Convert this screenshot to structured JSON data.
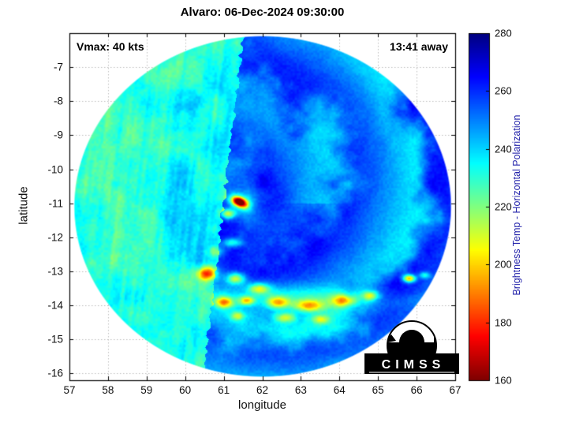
{
  "title": "Alvaro: 06-Dec-2024 09:30:00",
  "annotations": {
    "vmax": "Vmax: 40 kts",
    "timing": "13:41 away"
  },
  "axes": {
    "xlabel": "longitude",
    "ylabel": "latitude",
    "x_ticks": [
      57,
      58,
      59,
      60,
      61,
      62,
      63,
      64,
      65,
      66,
      67
    ],
    "y_ticks": [
      -7,
      -8,
      -9,
      -10,
      -11,
      -12,
      -13,
      -14,
      -15,
      -16
    ],
    "xlim": [
      57,
      67
    ],
    "ylim": [
      -16.2,
      -6.0
    ],
    "grid": "dotted"
  },
  "colorbar": {
    "label": "Brightness Temp - Horizontal Polarization",
    "ticks": [
      160,
      180,
      200,
      220,
      240,
      260,
      280
    ],
    "range": [
      160,
      280
    ],
    "colormap": "jet-reversed",
    "label_color": "#2222aa"
  },
  "logo": {
    "text": "CIMSS"
  },
  "chart_data": {
    "type": "heatmap",
    "title": "Alvaro: 06-Dec-2024 09:30:00",
    "storm_name": "Alvaro",
    "datetime": "06-Dec-2024 09:30:00",
    "vmax_kts": 40,
    "time_offset": "13:41 away",
    "xlabel": "longitude",
    "ylabel": "latitude",
    "xlim": [
      57,
      67
    ],
    "ylim": [
      -16.2,
      -6.0
    ],
    "value_range": [
      160,
      280
    ],
    "value_label": "Brightness Temp - Horizontal Polarization",
    "swath_shape": "circular",
    "swath_center": [
      62.0,
      -11.08
    ],
    "swath_radius_deg": [
      4.9,
      5.02
    ],
    "storm_center": [
      61.6,
      -11.0
    ],
    "eye_hotspot": {
      "lon": 61.4,
      "lat": -10.95,
      "min_temp": 162
    },
    "swath_seam_lon": {
      "top": 61.5,
      "bottom": 60.45
    },
    "background_temp": {
      "left_of_seam": 233,
      "right_of_seam": 251
    },
    "convective_cells": [
      [
        60.55,
        -13.05,
        55,
        9,
        6
      ],
      [
        61.3,
        -13.2,
        45,
        8,
        5
      ],
      [
        61.9,
        -13.5,
        40,
        10,
        5
      ],
      [
        61.0,
        -13.9,
        50,
        8,
        5
      ],
      [
        61.6,
        -13.85,
        45,
        7,
        4
      ],
      [
        62.4,
        -13.9,
        42,
        10,
        5
      ],
      [
        63.2,
        -14.0,
        42,
        12,
        5
      ],
      [
        64.1,
        -13.85,
        38,
        10,
        5
      ],
      [
        64.8,
        -13.7,
        34,
        8,
        4
      ],
      [
        65.8,
        -13.2,
        65,
        5.5,
        3.5
      ],
      [
        66.2,
        -13.1,
        28,
        5,
        3
      ],
      [
        62.6,
        -14.35,
        30,
        9,
        4
      ],
      [
        63.5,
        -14.4,
        28,
        8,
        4
      ],
      [
        61.35,
        -14.3,
        30,
        6,
        4
      ],
      [
        60.8,
        -12.4,
        25,
        7,
        5
      ],
      [
        61.2,
        -12.15,
        30,
        9,
        4
      ],
      [
        61.1,
        -11.3,
        50,
        7,
        4.5
      ],
      [
        62.5,
        -13.7,
        16,
        60,
        10
      ],
      [
        64.5,
        -13.9,
        12,
        50,
        9
      ]
    ]
  }
}
